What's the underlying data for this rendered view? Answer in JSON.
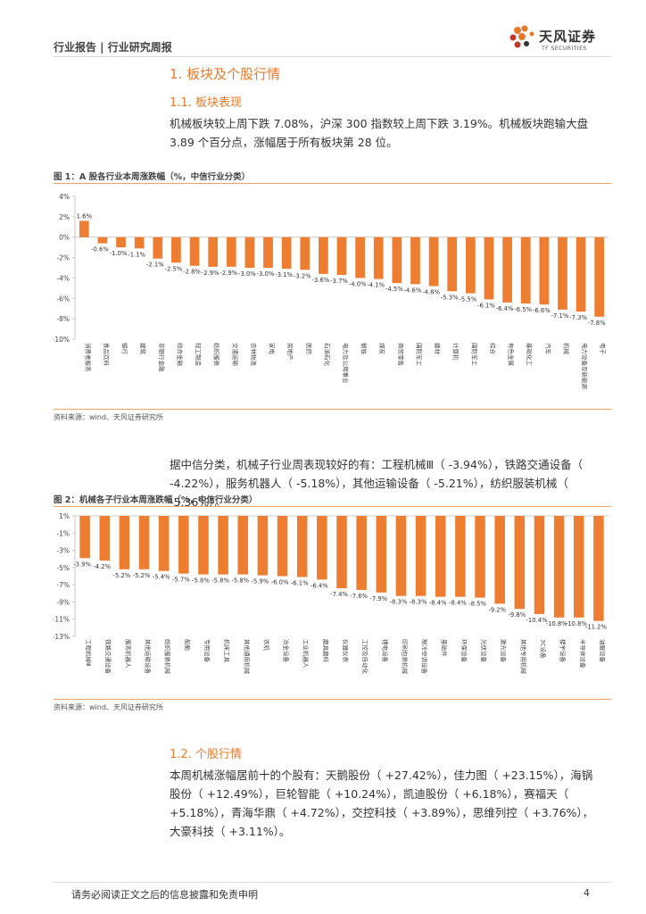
{
  "header": {
    "left_text": "行业报告 | 行业研究周报",
    "logo_cn": "天风证券",
    "logo_en": "TF SECURITIES"
  },
  "section1": {
    "title": "1. 板块及个股行情",
    "sub_title": "1.1. 板块表现",
    "paragraph": "机械板块较上周下跌 7.08%，沪深 300 指数较上周下跌 3.19%。机械板块跑输大盘 3.89 个百分点，涨幅居于所有板块第 28 位。"
  },
  "figure1": {
    "title": "图 1：A 股各行业本周涨跌幅（%，中信行业分类）",
    "source": "资料来源：wind、天风证券研究所"
  },
  "paragraph2": "据中信分类，机械子行业周表现较好的有：工程机械Ⅲ（ -3.94%），铁路交通设备（ -4.22%），服务机器人（ -5.18%），其他运输设备（ -5.21%），纺织服装机械（ -5.36%）。",
  "figure2": {
    "title": "图 2：机械各子行业本周涨跌幅（%，中信行业分类）",
    "source": "资料来源：wind、天风证券研究所"
  },
  "section2": {
    "sub_title": "1.2. 个股行情",
    "paragraph": "本周机械涨幅居前十的个股有：天鹅股份（ +27.42%），佳力图（ +23.15%），海锅股份（ +12.49%），巨轮智能（ +10.24%），凯迪股份（ +6.18%），赛福天（ +5.18%），青海华鼎（ +4.72%），交控科技（ +3.89%），思维列控（ +3.76%），大豪科技（ +3.11%）。"
  },
  "footer": {
    "disclaimer": "请务必阅读正文之后的信息披露和免责申明",
    "page": "4"
  },
  "colors": {
    "accent": "#e8792b",
    "bar": "#ed7d31"
  },
  "chart_data": [
    {
      "type": "bar",
      "title": "图 1：A 股各行业本周涨跌幅（%，中信行业分类）",
      "ylim": [
        -10,
        4
      ],
      "yticks": [
        "4%",
        "2%",
        "0%",
        "-2%",
        "-4%",
        "-6%",
        "-8%",
        "-10%"
      ],
      "categories": [
        "消费者服务",
        "食品饮料",
        "银行",
        "建筑",
        "非银行金融",
        "综合金融",
        "轻工制造",
        "纺织服装",
        "交通运输",
        "农林牧渔",
        "家电",
        "房地产",
        "医药",
        "石油石化",
        "电力及公用事业",
        "钢铁",
        "煤炭",
        "商贸零售",
        "国防军工",
        "建材",
        "计算机",
        "国防军工",
        "综合",
        "有色金属",
        "基础化工",
        "汽车",
        "机械",
        "电力设备及新能源",
        "电子"
      ],
      "values": [
        1.6,
        -0.6,
        -1.0,
        -1.1,
        -2.1,
        -2.5,
        -2.8,
        -2.9,
        -2.9,
        -3.0,
        -3.0,
        -3.1,
        -3.2,
        -3.6,
        -3.7,
        -4.0,
        -4.1,
        -4.5,
        -4.6,
        -4.8,
        -5.3,
        -5.5,
        -6.1,
        -6.4,
        -6.5,
        -6.6,
        -7.1,
        -7.3,
        -7.8
      ],
      "labels": [
        "1.6%",
        "-0.6%",
        "-1.0%",
        "-1.1%",
        "-2.1%",
        "-2.5%",
        "-2.8%",
        "-2.9%",
        "-2.9%",
        "-3.0%",
        "-3.0%",
        "-3.1%",
        "-3.2%",
        "-3.6%",
        "-3.7%",
        "-4.0%",
        "-4.1%",
        "-4.5%",
        "-4.6%",
        "-4.8%",
        "-5.3%",
        "-5.5%",
        "-6.1%",
        "-6.4%",
        "-6.5%",
        "-6.6%",
        "-7.1%",
        "-7.3%",
        "-7.8%"
      ]
    },
    {
      "type": "bar",
      "title": "图 2：机械各子行业本周涨跌幅（%，中信行业分类）",
      "ylim": [
        -13,
        1
      ],
      "yticks": [
        "1%",
        "-1%",
        "-3%",
        "-5%",
        "-7%",
        "-9%",
        "-11%",
        "-13%"
      ],
      "categories": [
        "工程机械Ⅲ",
        "铁路交通设备",
        "服务机器人",
        "其他运输设备",
        "纺织服装机械",
        "船舶",
        "专用设备",
        "机床工具",
        "其他通用机械",
        "农机",
        "冶金设备",
        "工业机器人",
        "磨具磨料",
        "仪器仪表",
        "工控及自动化",
        "锂电设备",
        "印刷包装机械",
        "制冷空调设备",
        "基础件",
        "环保设备",
        "光伏设备",
        "激光设备",
        "其他专用机械",
        "3C设备",
        "楼宇设备",
        "半导体设备",
        "油服设备"
      ],
      "values": [
        -3.9,
        -4.2,
        -5.2,
        -5.2,
        -5.4,
        -5.7,
        -5.8,
        -5.8,
        -5.8,
        -5.9,
        -6.0,
        -6.1,
        -6.4,
        -7.4,
        -7.6,
        -7.9,
        -8.3,
        -8.3,
        -8.4,
        -8.4,
        -8.5,
        -9.2,
        -9.8,
        -10.4,
        -10.8,
        -10.8,
        -11.2
      ],
      "labels": [
        "-3.9%",
        "-4.2%",
        "-5.2%",
        "-5.2%",
        "-5.4%",
        "-5.7%",
        "-5.8%",
        "-5.8%",
        "-5.8%",
        "-5.9%",
        "-6.0%",
        "-6.1%",
        "-6.4%",
        "-7.4%",
        "-7.6%",
        "-7.9%",
        "-8.3%",
        "-8.3%",
        "-8.4%",
        "-8.4%",
        "-8.5%",
        "-9.2%",
        "-9.8%",
        "-10.4%",
        "-10.8%",
        "-10.8%",
        "-11.2%"
      ]
    }
  ]
}
